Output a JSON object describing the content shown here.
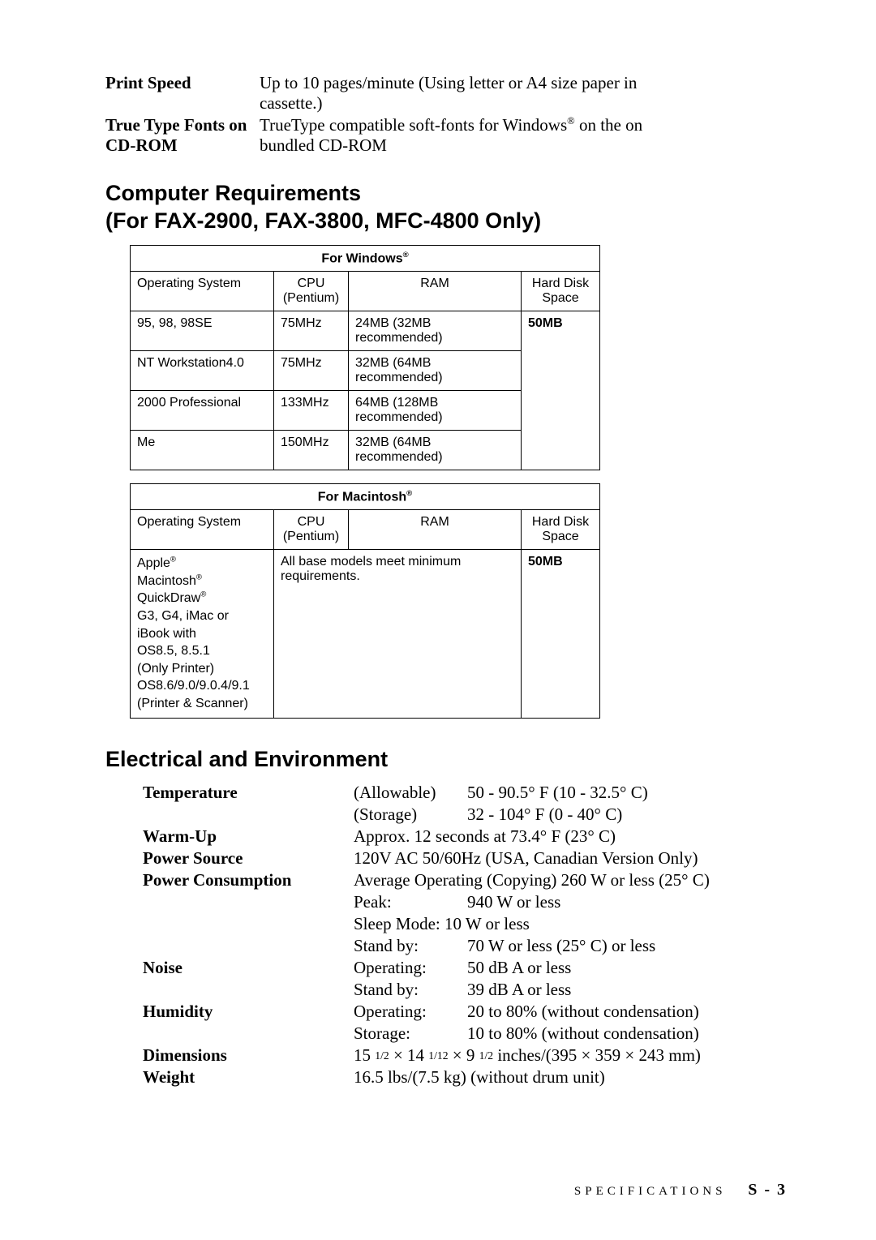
{
  "top_specs": [
    {
      "label": "Print Speed",
      "lines": [
        "Up to 10 pages/minute (Using letter or A4 size paper in",
        "cassette.)"
      ]
    },
    {
      "label": "True Type Fonts on CD-ROM",
      "lines": [
        "TrueType compatible soft-fonts for Windows<sup>®</sup> on the on",
        "bundled CD-ROM"
      ]
    }
  ],
  "section1_title": "Computer Requirements",
  "section1_subtitle": "(For FAX-2900, FAX-3800, MFC-4800 Only)",
  "win_table": {
    "caption": "For Windows<sup>®</sup>",
    "headers": [
      "Operating System",
      "CPU (Pentium)",
      "RAM",
      "Hard Disk Space"
    ],
    "rows": [
      {
        "os": "95, 98, 98SE",
        "cpu": "75MHz",
        "ram": "24MB (32MB recommended)",
        "disk": "50MB"
      },
      {
        "os": "NT Workstation4.0",
        "cpu": "75MHz",
        "ram": "32MB (64MB recommended)",
        "disk": ""
      },
      {
        "os": "2000 Professional",
        "cpu": "133MHz",
        "ram": "64MB (128MB recommended)",
        "disk": ""
      },
      {
        "os": "Me",
        "cpu": "150MHz",
        "ram": "32MB (64MB recommended)",
        "disk": ""
      }
    ]
  },
  "mac_table": {
    "caption": "For Macintosh<sup>®</sup>",
    "headers": [
      "Operating System",
      "CPU (Pentium)",
      "RAM",
      "Hard Disk Space"
    ],
    "os": "Apple<sup>®</sup> Macintosh<sup>®</sup> QuickDraw<sup>®</sup> G3, G4, iMac or iBook with OS8.5, 8.5.1 (Only Printer) OS8.6/9.0/9.0.4/9.1 (Printer & Scanner)",
    "ram": "All base models meet minimum requirements.",
    "disk": "50MB"
  },
  "section2_title": "Electrical and Environment",
  "env": {
    "temperature_label": "Temperature",
    "temperature_allow_key": "(Allowable)",
    "temperature_allow_val": "50 - 90.5° F (10 - 32.5° C)",
    "temperature_store_key": "(Storage)",
    "temperature_store_val": "32 - 104° F (0 - 40° C)",
    "warmup_label": "Warm-Up",
    "warmup_val": "Approx. 12 seconds at 73.4° F (23° C)",
    "power_source_label": "Power Source",
    "power_source_val": "120V AC 50/60Hz (USA, Canadian Version Only)",
    "power_cons_label": "Power Consumption",
    "power_cons_avg": "Average Operating (Copying) 260 W or less (25° C)",
    "power_cons_peak_key": "Peak:",
    "power_cons_peak_val": "940 W or less",
    "power_cons_sleep": "Sleep Mode: 10 W or less",
    "power_cons_standby_key": "Stand by:",
    "power_cons_standby_val": "70 W or less (25° C) or less",
    "noise_label": "Noise",
    "noise_op_key": "Operating:",
    "noise_op_val": "50 dB A or less",
    "noise_sb_key": "Stand by:",
    "noise_sb_val": "39 dB A or less",
    "humidity_label": "Humidity",
    "humidity_op_key": "Operating:",
    "humidity_op_val": "20 to 80% (without condensation)",
    "humidity_st_key": "Storage:",
    "humidity_st_val": "10 to 80% (without condensation)",
    "dimensions_label": "Dimensions",
    "dimensions_val": "15 <span class='frac'>1/2</span> × 14 <span class='frac'>1/12</span> × 9 <span class='frac'>1/2</span> inches/(395 × 359 × 243 mm)",
    "weight_label": "Weight",
    "weight_val": "16.5 lbs/(7.5 kg) (without drum unit)"
  },
  "footer_text": "SPECIFICATIONS",
  "footer_page": "S - 3"
}
